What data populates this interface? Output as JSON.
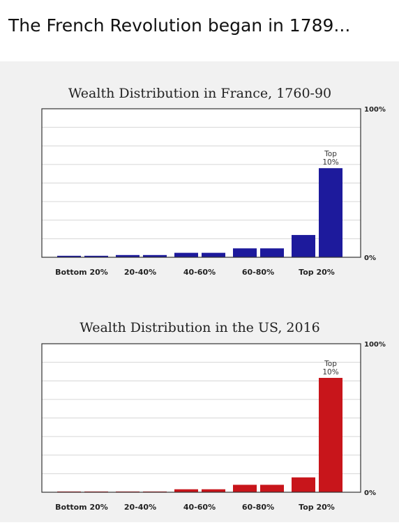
{
  "caption": "The French Revolution began in 1789...",
  "chart_data": [
    {
      "type": "bar",
      "title": "Wealth Distribution in France, 1760-90",
      "categories": [
        "Bottom 20%",
        "20-40%",
        "40-60%",
        "60-80%",
        "Top 20%"
      ],
      "y_axis_labels": [
        "100%",
        "0%"
      ],
      "ylim": [
        0,
        100
      ],
      "grid": true,
      "bar_color": "#1d1a9c",
      "bars": [
        {
          "category": "Bottom 20%",
          "value": 1
        },
        {
          "category": "Bottom 20%",
          "value": 1
        },
        {
          "category": "20-40%",
          "value": 1.5
        },
        {
          "category": "20-40%",
          "value": 1.5
        },
        {
          "category": "40-60%",
          "value": 3
        },
        {
          "category": "40-60%",
          "value": 3
        },
        {
          "category": "60-80%",
          "value": 6
        },
        {
          "category": "60-80%",
          "value": 6
        },
        {
          "category": "Top 20%",
          "value": 15
        },
        {
          "category": "Top 20%",
          "value": 60,
          "label": [
            "Top",
            "10%"
          ]
        }
      ]
    },
    {
      "type": "bar",
      "title": "Wealth Distribution in the US, 2016",
      "categories": [
        "Bottom 20%",
        "20-40%",
        "40-60%",
        "60-80%",
        "Top 20%"
      ],
      "y_axis_labels": [
        "100%",
        "0%"
      ],
      "ylim": [
        0,
        100
      ],
      "grid": true,
      "bar_color": "#c8151b",
      "bars": [
        {
          "category": "Bottom 20%",
          "value": 0.5
        },
        {
          "category": "Bottom 20%",
          "value": 0.5
        },
        {
          "category": "20-40%",
          "value": 0.5
        },
        {
          "category": "20-40%",
          "value": 0.5
        },
        {
          "category": "40-60%",
          "value": 2
        },
        {
          "category": "40-60%",
          "value": 2
        },
        {
          "category": "60-80%",
          "value": 5
        },
        {
          "category": "60-80%",
          "value": 5
        },
        {
          "category": "Top 20%",
          "value": 10
        },
        {
          "category": "Top 20%",
          "value": 77,
          "label": [
            "Top",
            "10%"
          ]
        }
      ]
    }
  ]
}
